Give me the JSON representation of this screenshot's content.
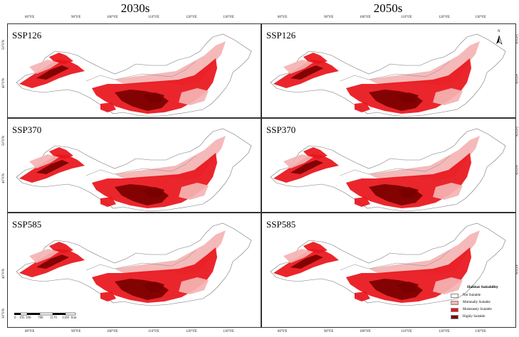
{
  "columns": [
    "2030s",
    "2050s"
  ],
  "rows": [
    "SSP126",
    "SSP370",
    "SSP585"
  ],
  "top_ticks": [
    "80°0'E",
    "90°0'E",
    "100°0'E",
    "110°0'E",
    "120°0'E",
    "130°0'E"
  ],
  "bottom_ticks": [
    "80°0'E",
    "90°0'E",
    "100°0'E",
    "110°0'E",
    "120°0'E",
    "130°0'E"
  ],
  "lat_ticks": [
    "50°0'N",
    "40°0'N"
  ],
  "lat_ticks_bottom": [
    "40°0'N",
    "30°0'N"
  ],
  "north_label": "N",
  "legend": {
    "title": "Habitat Suitability",
    "items": [
      {
        "label": "Not Suitable",
        "color": "#ffffff"
      },
      {
        "label": "Minimally Suitable",
        "color": "#f4b3b3"
      },
      {
        "label": "Moderately Suitable",
        "color": "#e8141a"
      },
      {
        "label": "Highly Suitable",
        "color": "#7a0000"
      }
    ]
  },
  "scale": {
    "ticks": [
      "0",
      "195",
      "390",
      "780",
      "1170",
      "1560"
    ],
    "unit": "Km"
  }
}
